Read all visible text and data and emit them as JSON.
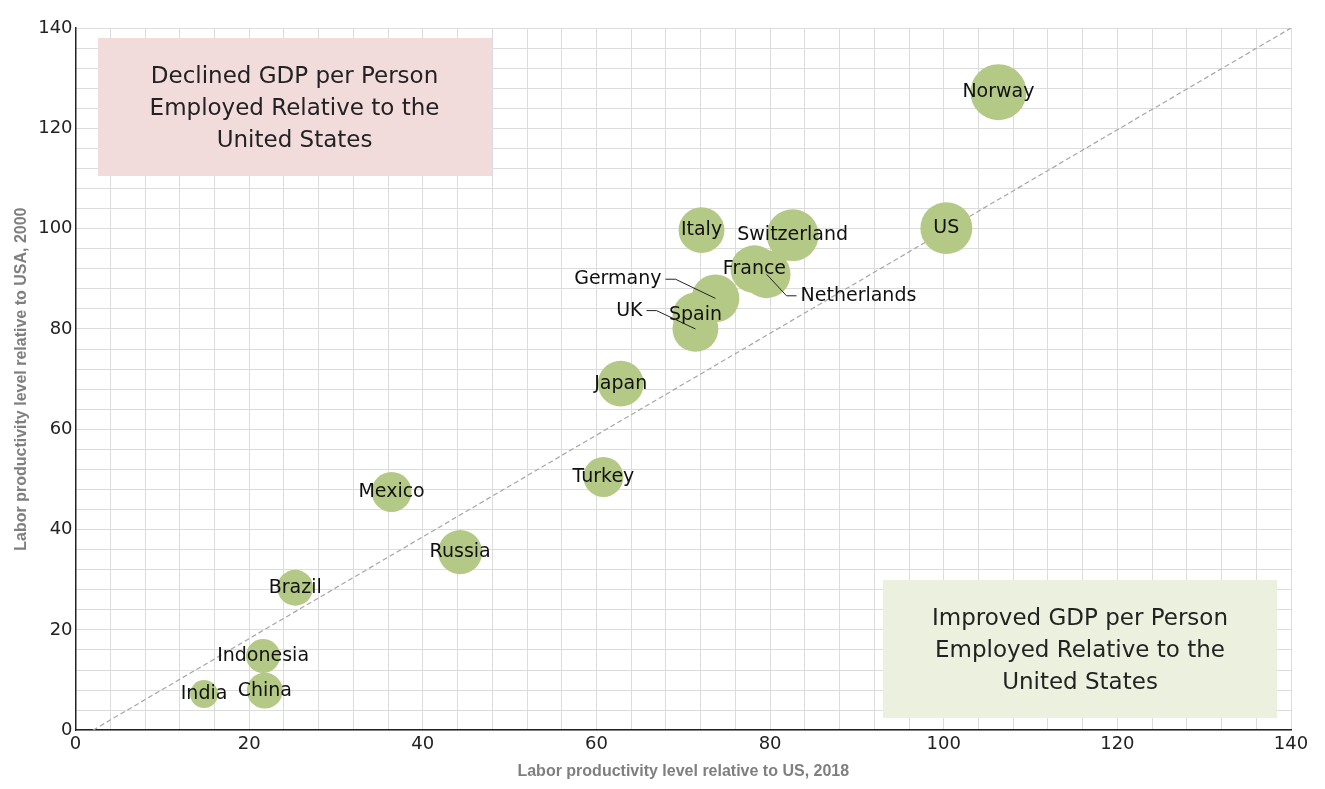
{
  "chart_data": {
    "type": "bubble",
    "xlabel": "Labor productivity level relative to US, 2018",
    "ylabel": "Labor productivity level relative to USA, 2000",
    "xlim": [
      0,
      140
    ],
    "ylim": [
      0,
      140
    ],
    "xticks": [
      0,
      {
        "value": 4,
        "label": null
      },
      {
        "value": 8,
        "label": null
      },
      {
        "value": 12,
        "label": null
      },
      {
        "value": 16,
        "label": null
      },
      20,
      {
        "value": 24,
        "label": null
      },
      {
        "value": 28,
        "label": null
      },
      {
        "value": 32,
        "label": null
      },
      {
        "value": 36,
        "label": null
      },
      40,
      {
        "value": 44,
        "label": null
      },
      {
        "value": 48,
        "label": null
      },
      {
        "value": 52,
        "label": null
      },
      {
        "value": 56,
        "label": null
      },
      60,
      {
        "value": 64,
        "label": null
      },
      {
        "value": 68,
        "label": null
      },
      {
        "value": 72,
        "label": null
      },
      {
        "value": 76,
        "label": null
      },
      80,
      {
        "value": 84,
        "label": null
      },
      {
        "value": 88,
        "label": null
      },
      {
        "value": 92,
        "label": null
      },
      {
        "value": 96,
        "label": null
      },
      100,
      {
        "value": 104,
        "label": null
      },
      {
        "value": 108,
        "label": null
      },
      {
        "value": 112,
        "label": null
      },
      {
        "value": 116,
        "label": null
      },
      120,
      {
        "value": 124,
        "label": null
      },
      {
        "value": 128,
        "label": null
      },
      {
        "value": 132,
        "label": null
      },
      {
        "value": 136,
        "label": null
      },
      140
    ],
    "yticks": [
      0,
      {
        "value": 4,
        "label": null
      },
      {
        "value": 8,
        "label": null
      },
      {
        "value": 12,
        "label": null
      },
      {
        "value": 16,
        "label": null
      },
      20,
      {
        "value": 24,
        "label": null
      },
      {
        "value": 28,
        "label": null
      },
      {
        "value": 32,
        "label": null
      },
      {
        "value": 36,
        "label": null
      },
      40,
      {
        "value": 44,
        "label": null
      },
      {
        "value": 48,
        "label": null
      },
      {
        "value": 52,
        "label": null
      },
      {
        "value": 56,
        "label": null
      },
      60,
      {
        "value": 64,
        "label": null
      },
      {
        "value": 68,
        "label": null
      },
      {
        "value": 72,
        "label": null
      },
      {
        "value": 76,
        "label": null
      },
      80,
      {
        "value": 84,
        "label": null
      },
      {
        "value": 88,
        "label": null
      },
      {
        "value": 92,
        "label": null
      },
      {
        "value": 96,
        "label": null
      },
      100,
      {
        "value": 104,
        "label": null
      },
      {
        "value": 108,
        "label": null
      },
      {
        "value": 112,
        "label": null
      },
      {
        "value": 116,
        "label": null
      },
      120,
      {
        "value": 124,
        "label": null
      },
      {
        "value": 128,
        "label": null
      },
      {
        "value": 132,
        "label": null
      },
      {
        "value": 136,
        "label": null
      },
      140
    ],
    "grid": true,
    "legend": false,
    "annotations": [
      "Declined GDP per Person Employed Relative to the United States",
      "Improved GDP per Person Employed Relative to the United States"
    ],
    "series": [
      {
        "type": "line",
        "color": "#a6a6a6",
        "line_style": "dashed",
        "marker": "none",
        "x": [
          2,
          140
        ],
        "values": [
          0,
          140
        ]
      },
      {
        "name": "Norway",
        "color": "#b4c985",
        "x": [
          106.3
        ],
        "values": [
          127.2
        ],
        "sizes": [
          1
        ]
      },
      {
        "name": "US",
        "color": "#b4c985",
        "x": [
          100.3
        ],
        "values": [
          100.1
        ],
        "sizes": [
          0.86
        ]
      },
      {
        "name": "Switzerland",
        "color": "#b4c985",
        "x": [
          82.6
        ],
        "values": [
          98.7
        ],
        "sizes": [
          0.86
        ]
      },
      {
        "name": "Italy",
        "color": "#b4c985",
        "x": [
          72.1
        ],
        "values": [
          99.7
        ],
        "sizes": [
          0.67
        ]
      },
      {
        "name": "France",
        "color": "#b4c985",
        "x": [
          78.2
        ],
        "values": [
          91.9
        ],
        "sizes": [
          0.73
        ]
      },
      {
        "name": "Spain",
        "color": "#b4c985",
        "x": [
          71.4
        ],
        "values": [
          82.7
        ],
        "sizes": [
          0.67
        ]
      },
      {
        "name": "Germany",
        "color": "#b4c985",
        "x": [
          73.7
        ],
        "values": [
          86.1
        ],
        "sizes": [
          0.73
        ]
      },
      {
        "name": "Netherlands",
        "color": "#b4c985",
        "x": [
          79.6
        ],
        "values": [
          90.9
        ],
        "sizes": [
          0.73
        ]
      },
      {
        "name": "UK",
        "color": "#b4c985",
        "x": [
          71.4
        ],
        "values": [
          80.0
        ],
        "sizes": [
          0.67
        ]
      },
      {
        "name": "Japan",
        "color": "#b4c985",
        "x": [
          62.8
        ],
        "values": [
          69.1
        ],
        "sizes": [
          0.67
        ]
      },
      {
        "name": "Turkey",
        "color": "#b4c985",
        "x": [
          60.8
        ],
        "values": [
          50.5
        ],
        "sizes": [
          0.51
        ]
      },
      {
        "name": "Mexico",
        "color": "#b4c985",
        "x": [
          36.4
        ],
        "values": [
          47.5
        ],
        "sizes": [
          0.51
        ]
      },
      {
        "name": "Russia",
        "color": "#b4c985",
        "x": [
          44.3
        ],
        "values": [
          35.5
        ],
        "sizes": [
          0.62
        ]
      },
      {
        "name": "Brazil",
        "color": "#b4c985",
        "x": [
          25.3
        ],
        "values": [
          28.4
        ],
        "sizes": [
          0.41
        ]
      },
      {
        "name": "Indonesia",
        "color": "#b4c985",
        "x": [
          21.6
        ],
        "values": [
          14.8
        ],
        "sizes": [
          0.37
        ]
      },
      {
        "name": "China",
        "color": "#b4c985",
        "x": [
          21.8
        ],
        "values": [
          7.9
        ],
        "sizes": [
          0.41
        ]
      },
      {
        "name": "India",
        "color": "#b4c985",
        "x": [
          14.8
        ],
        "values": [
          7.2
        ],
        "sizes": [
          0.25
        ]
      }
    ]
  }
}
